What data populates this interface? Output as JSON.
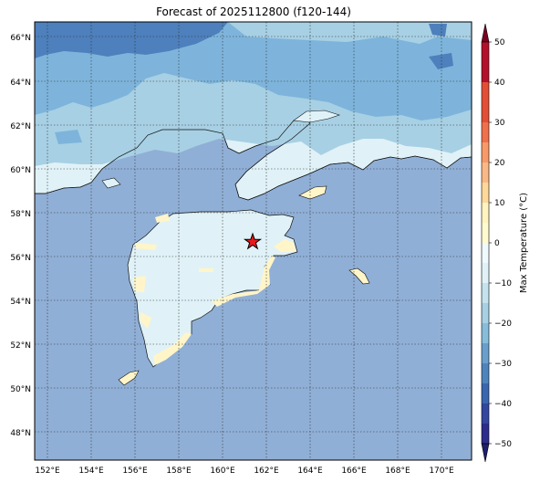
{
  "title": "Forecast of 2025112800 (f120-144)",
  "map": {
    "lon_labels": [
      "152°E",
      "154°E",
      "156°E",
      "158°E",
      "160°E",
      "162°E",
      "164°E",
      "166°E",
      "168°E",
      "170°E"
    ],
    "lat_labels": [
      "66°N",
      "64°N",
      "62°N",
      "60°N",
      "58°N",
      "56°N",
      "54°N",
      "52°N",
      "50°N",
      "48°N"
    ],
    "marker": {
      "name": "star",
      "lon": 161.4,
      "lat": 56.7,
      "color": "#e8191d"
    }
  },
  "colorbar": {
    "label": "Max Temperature (°C)",
    "ticks": [
      "50",
      "40",
      "30",
      "20",
      "10",
      "0",
      "−10",
      "−20",
      "−30",
      "−40",
      "−50"
    ],
    "colors": {
      "c_-50": "#2c2c8c",
      "c_-40": "#3a66b0",
      "c_-30": "#6a9fcc",
      "c_-20": "#a7d0e4",
      "c_-10": "#e0f2f7",
      "c_0": "#fffbd0",
      "c_10": "#fdd89a",
      "c_20": "#f79a68",
      "c_30": "#e34e37",
      "c_40": "#b5102b",
      "c_50": "#7a0020"
    }
  },
  "colors": {
    "ocean": "#90afd6",
    "land_cold": "#e0f2f7",
    "land_warm": "#fff5c8",
    "arctic_light": "#a7d0e4",
    "arctic_mid": "#7eb4db",
    "arctic_dark": "#4d80bc",
    "grid": "#333333"
  }
}
